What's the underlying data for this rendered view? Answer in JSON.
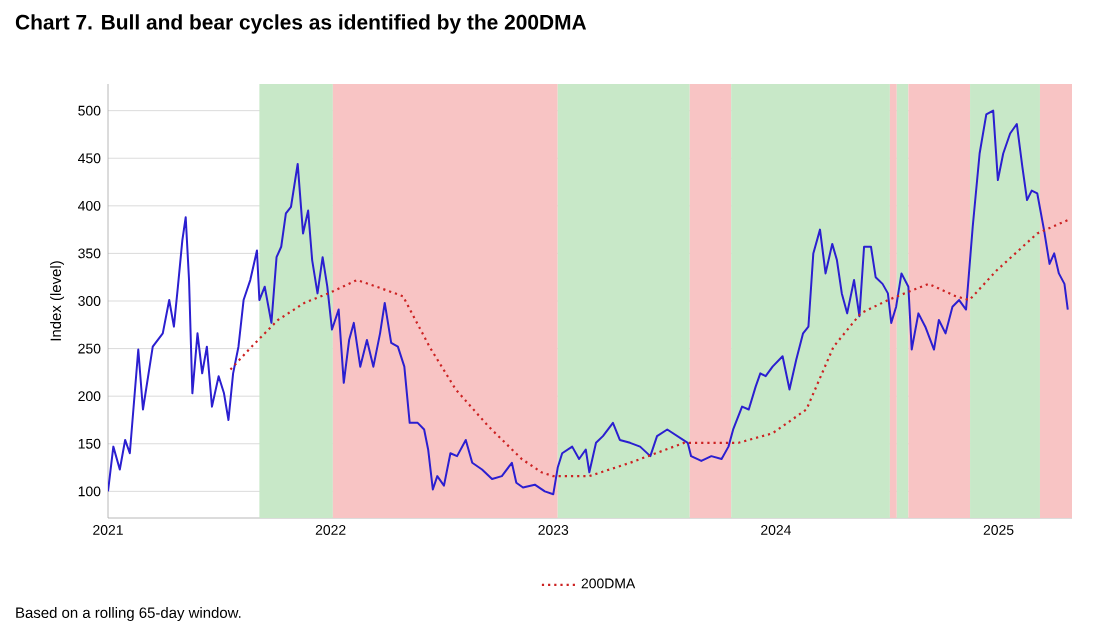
{
  "chart_data": {
    "type": "line",
    "title": "Chart 7. Bull and bear cycles as identified by the 200DMA",
    "ylabel": "Index (level)",
    "annotations": [
      "Based on a rolling 65-day window."
    ],
    "xlim": [
      2021,
      2025.33
    ],
    "xticks": [
      2021,
      2022,
      2023,
      2024,
      2025
    ],
    "ylim": [
      72,
      528
    ],
    "yticks": [
      100,
      150,
      200,
      250,
      300,
      350,
      400,
      450,
      500
    ],
    "grid": "y",
    "legend": "bottom",
    "bands": [
      {
        "axis": "x",
        "from": 2021.68,
        "to": 2022.01,
        "color": "#c8e8c8"
      },
      {
        "axis": "x",
        "from": 2022.01,
        "to": 2023.02,
        "color": "#f8c4c4"
      },
      {
        "axis": "x",
        "from": 2023.02,
        "to": 2023.613,
        "color": "#c8e8c8"
      },
      {
        "axis": "x",
        "from": 2023.613,
        "to": 2023.799,
        "color": "#f8c4c4"
      },
      {
        "axis": "x",
        "from": 2023.799,
        "to": 2024.512,
        "color": "#c8e8c8"
      },
      {
        "axis": "x",
        "from": 2024.512,
        "to": 2024.543,
        "color": "#f8c4c4"
      },
      {
        "axis": "x",
        "from": 2024.543,
        "to": 2024.595,
        "color": "#c8e8c8"
      },
      {
        "axis": "x",
        "from": 2024.595,
        "to": 2024.872,
        "color": "#f8c4c4"
      },
      {
        "axis": "x",
        "from": 2024.872,
        "to": 2025.186,
        "color": "#c8e8c8"
      },
      {
        "axis": "x",
        "from": 2025.186,
        "to": 2025.33,
        "color": "#f8c4c4"
      }
    ],
    "series": [
      {
        "color": "#2b1fd0",
        "line_style": "solid",
        "x": [
          2021.0,
          2021.024,
          2021.053,
          2021.077,
          2021.098,
          2021.136,
          2021.157,
          2021.201,
          2021.246,
          2021.275,
          2021.296,
          2021.314,
          2021.334,
          2021.349,
          2021.364,
          2021.379,
          2021.402,
          2021.423,
          2021.444,
          2021.467,
          2021.497,
          2021.521,
          2021.541,
          2021.562,
          2021.586,
          2021.609,
          2021.639,
          2021.669,
          2021.68,
          2021.704,
          2021.734,
          2021.757,
          2021.778,
          2021.799,
          2021.822,
          2021.852,
          2021.876,
          2021.899,
          2021.917,
          2021.941,
          2021.964,
          2021.985,
          2022.006,
          2022.036,
          2022.059,
          2022.083,
          2022.104,
          2022.133,
          2022.163,
          2022.192,
          2022.222,
          2022.243,
          2022.272,
          2022.302,
          2022.331,
          2022.355,
          2022.391,
          2022.42,
          2022.438,
          2022.459,
          2022.479,
          2022.509,
          2022.538,
          2022.568,
          2022.607,
          2022.636,
          2022.68,
          2022.725,
          2022.769,
          2022.814,
          2022.834,
          2022.864,
          2022.917,
          2022.962,
          2023.0,
          2023.02,
          2023.04,
          2023.085,
          2023.116,
          2023.146,
          2023.162,
          2023.192,
          2023.223,
          2023.268,
          2023.299,
          2023.345,
          2023.39,
          2023.436,
          2023.466,
          2023.512,
          2023.558,
          2023.604,
          2023.619,
          2023.665,
          2023.71,
          2023.756,
          2023.787,
          2023.808,
          2023.848,
          2023.878,
          2023.909,
          2023.93,
          2023.954,
          2023.985,
          2024.03,
          2024.061,
          2024.091,
          2024.122,
          2024.146,
          2024.168,
          2024.198,
          2024.223,
          2024.253,
          2024.274,
          2024.296,
          2024.32,
          2024.351,
          2024.375,
          2024.396,
          2024.427,
          2024.448,
          2024.479,
          2024.503,
          2024.518,
          2024.54,
          2024.564,
          2024.595,
          2024.61,
          2024.64,
          2024.671,
          2024.71,
          2024.732,
          2024.762,
          2024.793,
          2024.823,
          2024.854,
          2024.884,
          2024.915,
          2024.945,
          2024.976,
          2024.997,
          2025.021,
          2025.052,
          2025.082,
          2025.107,
          2025.128,
          2025.149,
          2025.174,
          2025.204,
          2025.229,
          2025.25,
          2025.271,
          2025.296,
          2025.311
        ],
        "values": [
          100,
          147,
          123,
          154,
          140,
          249,
          186,
          252,
          266,
          301,
          273,
          315,
          364,
          388,
          322,
          203,
          266,
          224,
          252,
          189,
          221,
          203,
          175,
          224,
          252,
          301,
          322,
          353,
          301,
          315,
          277,
          346,
          357,
          392,
          399,
          444,
          371,
          395,
          343,
          308,
          346,
          315,
          270,
          291,
          214,
          259,
          277,
          231,
          259,
          231,
          266,
          298,
          256,
          252,
          231,
          172,
          172,
          165,
          144,
          102,
          116,
          106,
          140,
          137,
          154,
          130,
          123,
          113,
          116,
          130,
          109,
          104,
          107,
          100,
          97,
          125,
          140,
          147,
          134,
          144,
          120,
          151,
          158,
          172,
          154,
          151,
          147,
          137,
          158,
          165,
          158,
          151,
          137,
          132,
          137,
          134,
          147,
          165,
          189,
          186,
          210,
          224,
          221,
          231,
          242,
          207,
          238,
          266,
          273,
          350,
          375,
          329,
          360,
          343,
          308,
          287,
          322,
          284,
          357,
          357,
          325,
          318,
          308,
          277,
          294,
          329,
          315,
          249,
          287,
          273,
          249,
          280,
          266,
          294,
          301,
          291,
          378,
          455,
          496,
          500,
          427,
          455,
          476,
          486,
          441,
          406,
          416,
          413,
          375,
          339,
          350,
          329,
          318,
          291
        ]
      },
      {
        "name": "200DMA",
        "color": "#cc2222",
        "line_style": "dotted",
        "x": [
          2021.55,
          2021.645,
          2021.763,
          2021.882,
          2022.0,
          2022.118,
          2022.207,
          2022.325,
          2022.444,
          2022.562,
          2022.71,
          2022.858,
          2022.947,
          2023.0,
          2023.162,
          2023.345,
          2023.588,
          2023.832,
          2023.985,
          2024.137,
          2024.259,
          2024.381,
          2024.503,
          2024.686,
          2024.808,
          2024.869,
          2024.991,
          2025.174,
          2025.311
        ],
        "values": [
          228,
          252,
          280,
          298,
          309,
          322,
          315,
          305,
          252,
          207,
          168,
          134,
          120,
          116,
          116,
          130,
          151,
          151,
          161,
          186,
          252,
          287,
          301,
          318,
          305,
          301,
          332,
          371,
          385
        ]
      }
    ]
  }
}
